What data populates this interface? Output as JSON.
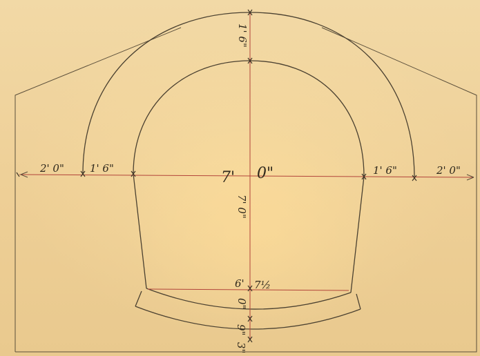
{
  "drawing": {
    "dimensions": {
      "left_margin": "2' 0\"",
      "left_arch_thickness": "1' 6\"",
      "span_feet": "7'",
      "span_inches": "0\"",
      "right_arch_thickness": "1' 6\"",
      "right_margin": "2' 0\"",
      "crown_thickness": "1' 6\"",
      "rise_height": "7' 0\"",
      "invert_depth_a": "6'",
      "invert_depth_b": "7½",
      "invert_thickness": "0\"",
      "base_thickness": "9\"",
      "bottom_note": "3\""
    }
  }
}
